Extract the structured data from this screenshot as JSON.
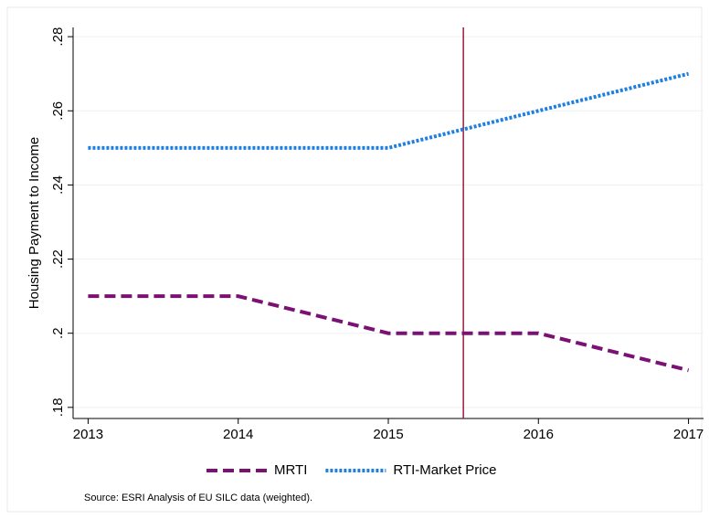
{
  "chart_data": {
    "type": "line",
    "y_label": "Housing Payment to Income",
    "x": [
      2013,
      2014,
      2015,
      2016,
      2017
    ],
    "series": [
      {
        "name": "MRTI",
        "color": "#7a1173",
        "style": "dash",
        "values": [
          0.21,
          0.21,
          0.2,
          0.2,
          0.19
        ]
      },
      {
        "name": "RTI-Market Price",
        "color": "#1e7fe0",
        "style": "dot",
        "values": [
          0.25,
          0.25,
          0.25,
          0.26,
          0.27
        ]
      }
    ],
    "xlim": [
      2012.9,
      2017.1
    ],
    "xticks": [
      2013,
      2014,
      2015,
      2016,
      2017
    ],
    "ylim": [
      0.177,
      0.2825
    ],
    "yticks": [
      {
        "value": 0.18,
        "label": ".18"
      },
      {
        "value": 0.2,
        "label": ".2"
      },
      {
        "value": 0.22,
        "label": ".22"
      },
      {
        "value": 0.24,
        "label": ".24"
      },
      {
        "value": 0.26,
        "label": ".26"
      },
      {
        "value": 0.28,
        "label": ".28"
      }
    ],
    "vline": 2015.5,
    "vline_color": "#9e1b3c",
    "grid": true,
    "legend": "bottom",
    "note": "Source:  ESRI Analysis of EU SILC data (weighted)."
  }
}
